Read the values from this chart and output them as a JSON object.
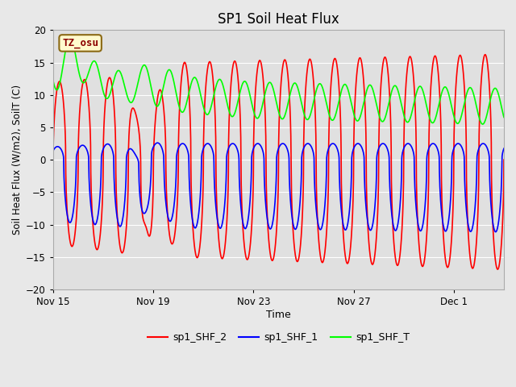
{
  "title": "SP1 Soil Heat Flux",
  "xlabel": "Time",
  "ylabel": "Soil Heat Flux (W/m2), SoilT (C)",
  "ylim": [
    -20,
    20
  ],
  "yticks": [
    -20,
    -15,
    -10,
    -5,
    0,
    5,
    10,
    15,
    20
  ],
  "xtick_labels": [
    "Nov 15",
    "Nov 19",
    "Nov 23",
    "Nov 27",
    "Dec 1"
  ],
  "xtick_pos": [
    0,
    4,
    8,
    12,
    16
  ],
  "xlim": [
    0,
    18.0
  ],
  "outer_bg": "#e8e8e8",
  "plot_bg": "#e0e0e0",
  "legend_labels": [
    "sp1_SHF_2",
    "sp1_SHF_1",
    "sp1_SHF_T"
  ],
  "line_colors": [
    "red",
    "blue",
    "lime"
  ],
  "annotation_text": "TZ_osu",
  "annotation_color": "#8b0000",
  "annotation_bg": "#fffacd",
  "annotation_border": "#8b6914",
  "line_width": 1.2,
  "total_days": 18.0,
  "n_pts": 2000
}
